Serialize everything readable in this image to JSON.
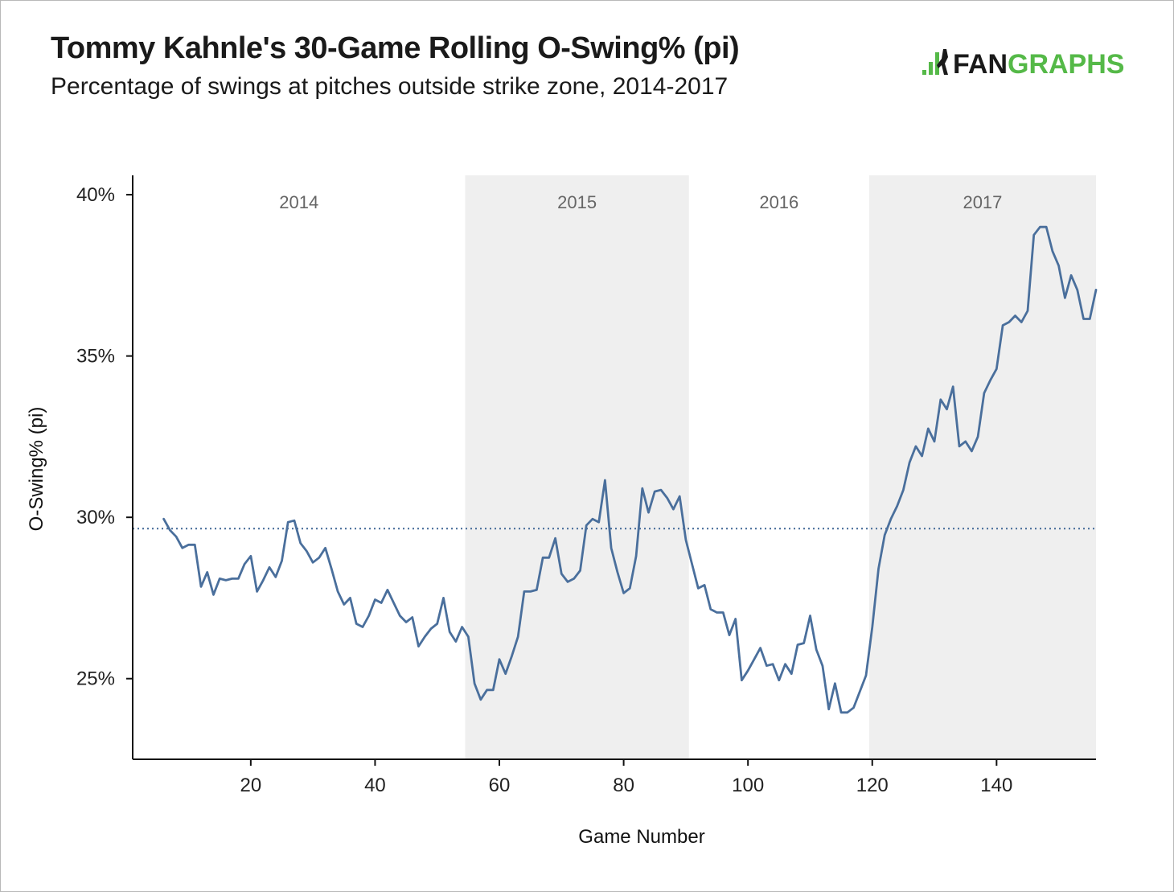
{
  "header": {
    "title": "Tommy Kahnle's 30-Game Rolling O-Swing% (pi)",
    "subtitle": "Percentage of swings at pitches outside strike zone, 2014-2017"
  },
  "logo": {
    "text_part1": "FAN",
    "text_part2": "GRAPHS",
    "color_dark": "#1a1a1a",
    "color_green": "#55b948"
  },
  "chart_data": {
    "type": "line",
    "title": "Tommy Kahnle's 30-Game Rolling O-Swing% (pi)",
    "subtitle": "Percentage of swings at pitches outside strike zone, 2014-2017",
    "xlabel": "Game Number",
    "ylabel": "O-Swing% (pi)",
    "xlim": [
      1,
      156
    ],
    "ylim": [
      22.5,
      40.6
    ],
    "xticks": [
      20,
      40,
      60,
      80,
      100,
      120,
      140
    ],
    "xtick_labels": [
      "20",
      "40",
      "60",
      "80",
      "100",
      "120",
      "140"
    ],
    "yticks": [
      25,
      30,
      35,
      40
    ],
    "ytick_labels": [
      "25%",
      "30%",
      "35%",
      "40%"
    ],
    "reference_line": {
      "value": 29.65,
      "style": "dotted"
    },
    "seasons": [
      {
        "label": "2014",
        "start": 1,
        "end": 54.5,
        "shaded": false
      },
      {
        "label": "2015",
        "start": 54.5,
        "end": 90.5,
        "shaded": true
      },
      {
        "label": "2016",
        "start": 90.5,
        "end": 119.5,
        "shaded": false
      },
      {
        "label": "2017",
        "start": 119.5,
        "end": 156,
        "shaded": true
      }
    ],
    "colors": {
      "line": "#4a6f9c",
      "shade": "#efefef",
      "axis": "#111111"
    },
    "series": [
      {
        "x": [
          6,
          7,
          8,
          9,
          10,
          11,
          12,
          13,
          14,
          15,
          16,
          17,
          18,
          19,
          20,
          21,
          22,
          23,
          24,
          25,
          26,
          27,
          28,
          29,
          30,
          31,
          32,
          33,
          34,
          35,
          36,
          37,
          38,
          39,
          40,
          41,
          42,
          43,
          44,
          45,
          46,
          47,
          48,
          49,
          50,
          51,
          52,
          53,
          54,
          55,
          56,
          57,
          58,
          59,
          60,
          61,
          62,
          63,
          64,
          65,
          66,
          67,
          68,
          69,
          70,
          71,
          72,
          73,
          74,
          75,
          76,
          77,
          78,
          79,
          80,
          81,
          82,
          83,
          84,
          85,
          86,
          87,
          88,
          89,
          90,
          91,
          92,
          93,
          94,
          95,
          96,
          97,
          98,
          99,
          100,
          101,
          102,
          103,
          104,
          105,
          106,
          107,
          108,
          109,
          110,
          111,
          112,
          113,
          114,
          115,
          116,
          117,
          118,
          119,
          120,
          121,
          122,
          123,
          124,
          125,
          126,
          127,
          128,
          129,
          130,
          131,
          132,
          133,
          134,
          135,
          136,
          137,
          138,
          139,
          140,
          141,
          142,
          143,
          144,
          145,
          146,
          147,
          148,
          149,
          150,
          151,
          152,
          153,
          154,
          155,
          156
        ],
        "values": [
          29.95,
          29.6,
          29.4,
          29.05,
          29.15,
          29.15,
          27.85,
          28.3,
          27.6,
          28.1,
          28.05,
          28.1,
          28.1,
          28.55,
          28.8,
          27.7,
          28.05,
          28.45,
          28.15,
          28.65,
          29.85,
          29.9,
          29.2,
          28.95,
          28.6,
          28.75,
          29.05,
          28.4,
          27.7,
          27.3,
          27.5,
          26.7,
          26.6,
          26.95,
          27.45,
          27.35,
          27.75,
          27.35,
          26.95,
          26.75,
          26.9,
          26.0,
          26.3,
          26.55,
          26.7,
          27.5,
          26.45,
          26.15,
          26.6,
          26.3,
          24.85,
          24.35,
          24.65,
          24.65,
          25.6,
          25.15,
          25.7,
          26.3,
          27.7,
          27.7,
          27.75,
          28.75,
          28.75,
          29.35,
          28.25,
          28.0,
          28.1,
          28.35,
          29.75,
          29.95,
          29.85,
          31.15,
          29.05,
          28.3,
          27.65,
          27.8,
          28.8,
          30.9,
          30.15,
          30.8,
          30.85,
          30.6,
          30.25,
          30.65,
          29.3,
          28.55,
          27.8,
          27.9,
          27.15,
          27.05,
          27.05,
          26.35,
          26.85,
          24.95,
          25.25,
          25.6,
          25.95,
          25.4,
          25.45,
          24.95,
          25.45,
          25.15,
          26.05,
          26.1,
          26.95,
          25.9,
          25.4,
          24.05,
          24.85,
          23.95,
          23.95,
          24.1,
          24.6,
          25.1,
          26.6,
          28.4,
          29.45,
          29.95,
          30.35,
          30.85,
          31.7,
          32.2,
          31.9,
          32.75,
          32.35,
          33.65,
          33.35,
          34.05,
          32.2,
          32.35,
          32.05,
          32.5,
          33.85,
          34.25,
          34.6,
          35.95,
          36.05,
          36.25,
          36.05,
          36.4,
          38.75,
          39.0,
          39.0,
          38.25,
          37.8,
          36.8,
          37.5,
          37.05,
          36.15,
          36.15,
          37.05
        ]
      }
    ]
  }
}
